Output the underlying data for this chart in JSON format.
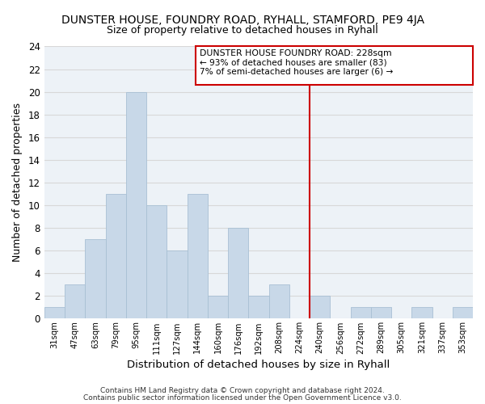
{
  "title": "DUNSTER HOUSE, FOUNDRY ROAD, RYHALL, STAMFORD, PE9 4JA",
  "subtitle": "Size of property relative to detached houses in Ryhall",
  "xlabel": "Distribution of detached houses by size in Ryhall",
  "ylabel": "Number of detached properties",
  "bar_color": "#c8d8e8",
  "bar_edge_color": "#a8c0d4",
  "bin_labels": [
    "31sqm",
    "47sqm",
    "63sqm",
    "79sqm",
    "95sqm",
    "111sqm",
    "127sqm",
    "144sqm",
    "160sqm",
    "176sqm",
    "192sqm",
    "208sqm",
    "224sqm",
    "240sqm",
    "256sqm",
    "272sqm",
    "289sqm",
    "305sqm",
    "321sqm",
    "337sqm",
    "353sqm"
  ],
  "bar_heights": [
    1,
    3,
    7,
    11,
    20,
    10,
    6,
    11,
    2,
    8,
    2,
    3,
    0,
    2,
    0,
    1,
    1,
    0,
    1,
    0,
    1
  ],
  "marker_index": 12.5,
  "marker_color": "#cc0000",
  "ylim": [
    0,
    24
  ],
  "yticks": [
    0,
    2,
    4,
    6,
    8,
    10,
    12,
    14,
    16,
    18,
    20,
    22,
    24
  ],
  "annotation_title": "DUNSTER HOUSE FOUNDRY ROAD: 228sqm",
  "annotation_line1": "← 93% of detached houses are smaller (83)",
  "annotation_line2": "7% of semi-detached houses are larger (6) →",
  "footer_line1": "Contains HM Land Registry data © Crown copyright and database right 2024.",
  "footer_line2": "Contains public sector information licensed under the Open Government Licence v3.0.",
  "grid_color": "#d8d8d8",
  "bg_color": "#edf2f7"
}
